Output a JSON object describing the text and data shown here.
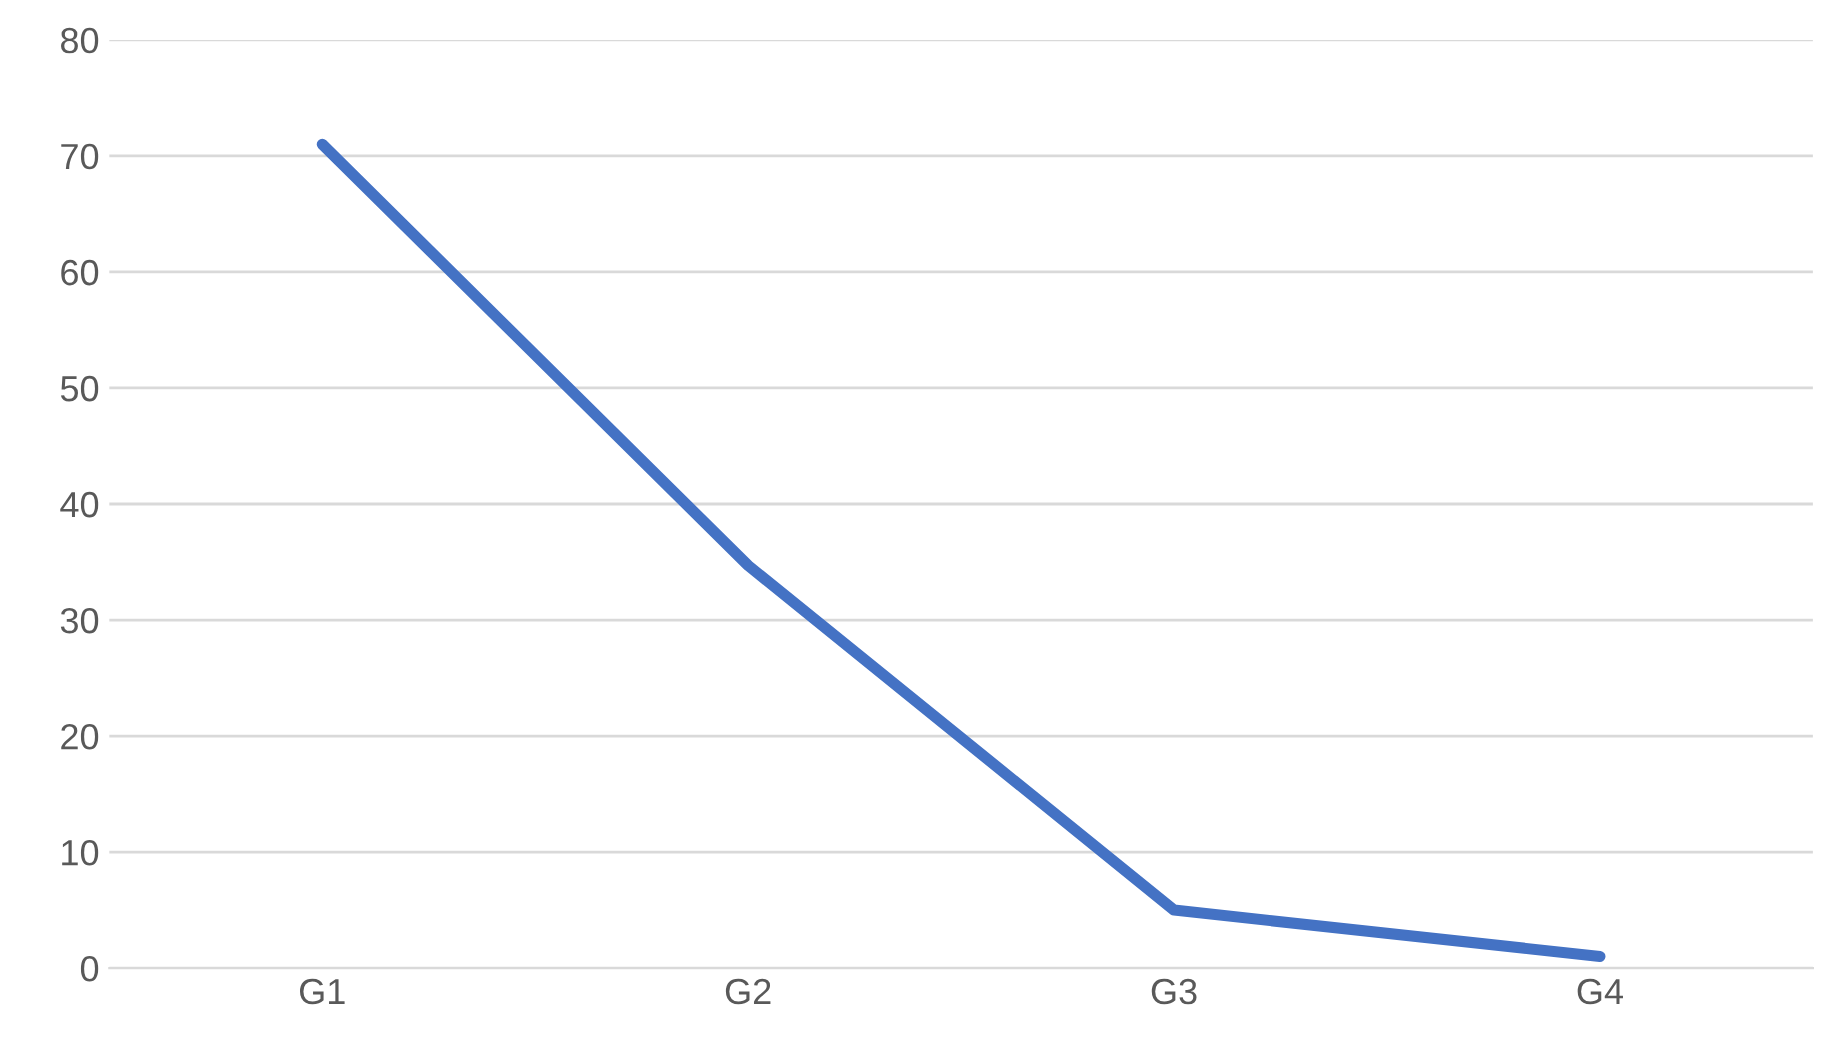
{
  "chart_data": {
    "type": "line",
    "categories": [
      "G1",
      "G2",
      "G3",
      "G4"
    ],
    "series": [
      {
        "color": "#4472c4",
        "values": [
          71,
          34.7,
          5,
          1
        ]
      }
    ],
    "ylim": [
      0,
      80
    ],
    "yticks": [
      0,
      10,
      20,
      30,
      40,
      50,
      60,
      70,
      80
    ],
    "grid": "y",
    "marker": "none",
    "line_style": "solid"
  }
}
